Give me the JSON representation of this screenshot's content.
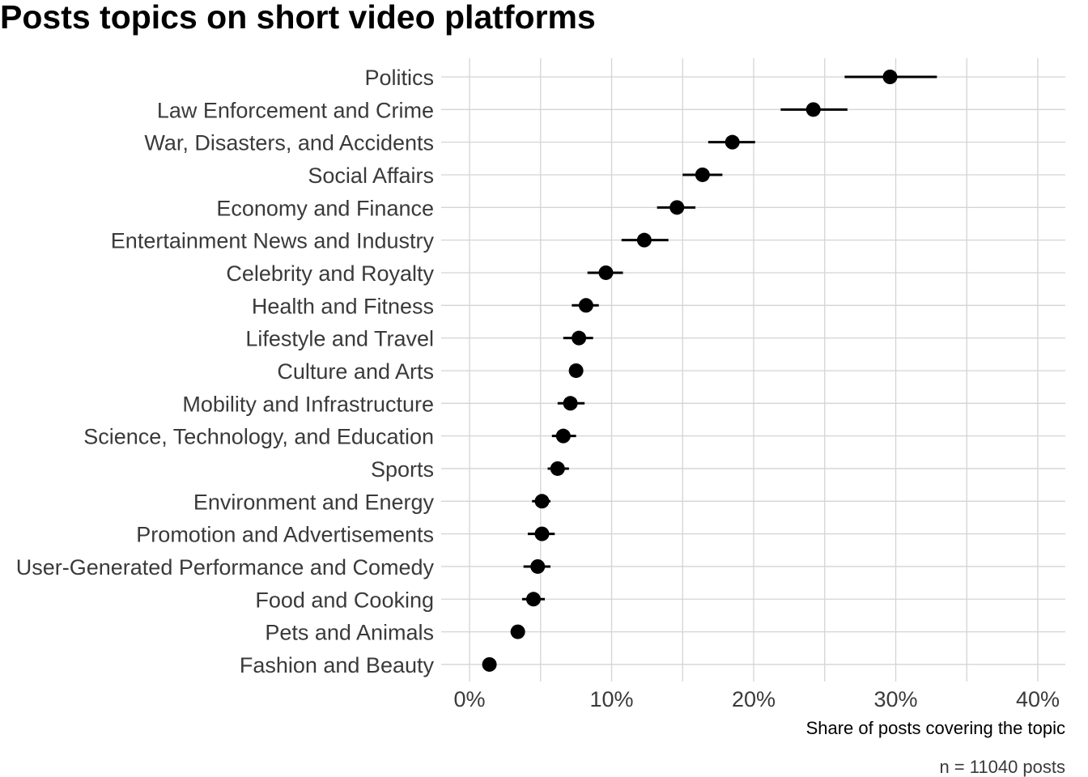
{
  "chart_data": {
    "type": "scatter",
    "title": "Posts topics on short video platforms",
    "xlabel": "Share of posts covering the topic",
    "ylabel": "",
    "caption": "n = 11040 posts",
    "xlim": [
      0,
      40
    ],
    "x_ticks": [
      0,
      10,
      20,
      30,
      40
    ],
    "x_tick_labels": [
      "0%",
      "10%",
      "20%",
      "30%",
      "40%"
    ],
    "grid": true,
    "legend": "none",
    "point_color": "#000000",
    "categories": [
      "Politics",
      "Law Enforcement and Crime",
      "War, Disasters, and Accidents",
      "Social Affairs",
      "Economy and Finance",
      "Entertainment News and Industry",
      "Celebrity and Royalty",
      "Health and Fitness",
      "Lifestyle and Travel",
      "Culture and Arts",
      "Mobility and Infrastructure",
      "Science, Technology, and Education",
      "Sports",
      "Environment and Energy",
      "Promotion and Advertisements",
      "User-Generated Performance and Comedy",
      "Food and Cooking",
      "Pets and Animals",
      "Fashion and Beauty"
    ],
    "values": [
      29.6,
      24.2,
      18.5,
      16.4,
      14.6,
      12.3,
      9.6,
      8.2,
      7.7,
      7.5,
      7.1,
      6.6,
      6.2,
      5.1,
      5.1,
      4.8,
      4.5,
      3.4,
      1.4
    ],
    "lower": [
      26.4,
      21.9,
      16.8,
      15.0,
      13.2,
      10.7,
      8.3,
      7.2,
      6.6,
      7.1,
      6.2,
      5.8,
      5.5,
      4.4,
      4.1,
      3.8,
      3.7,
      2.9,
      1.2
    ],
    "upper": [
      32.9,
      26.6,
      20.1,
      17.8,
      15.9,
      14.0,
      10.8,
      9.1,
      8.7,
      7.9,
      8.1,
      7.5,
      7.0,
      5.7,
      6.0,
      5.7,
      5.3,
      3.9,
      1.7
    ]
  }
}
